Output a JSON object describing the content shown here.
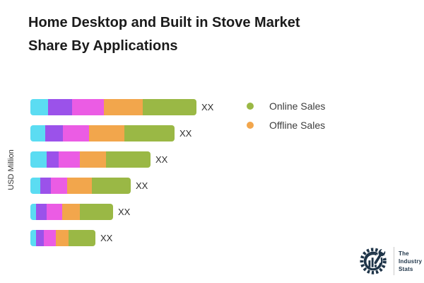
{
  "title": {
    "line1": "Home Desktop and Built in Stove Market",
    "line2": "Share By Applications"
  },
  "axis": {
    "y_label": "USD Million"
  },
  "legend": {
    "items": [
      {
        "label": "Online Sales",
        "color": "#9ab845"
      },
      {
        "label": "Offline Sales",
        "color": "#f2a64c"
      }
    ]
  },
  "logo": {
    "line1": "The",
    "line2": "Industry",
    "line3": "Stats",
    "color": "#1e3448"
  },
  "chart_data": {
    "type": "bar",
    "orientation": "horizontal",
    "stacked": true,
    "title": "Home Desktop and Built in Stove Market Share By Applications",
    "ylabel": "USD Million",
    "xlabel": "",
    "grid": false,
    "legend_position": "right",
    "category_labels_shown": false,
    "value_unit": "relative-width-px (chart shows placeholder values)",
    "series": [
      {
        "name": "",
        "color": "#5bdcf2",
        "values": [
          25,
          21,
          23,
          14,
          8,
          8
        ]
      },
      {
        "name": "",
        "color": "#9b52ea",
        "values": [
          34,
          25,
          17,
          15,
          15,
          11
        ]
      },
      {
        "name": "",
        "color": "#eb5ce4",
        "values": [
          45,
          37,
          30,
          23,
          22,
          17
        ]
      },
      {
        "name": "Offline Sales",
        "color": "#f2a64c",
        "values": [
          55,
          50,
          37,
          35,
          25,
          18
        ]
      },
      {
        "name": "Online Sales",
        "color": "#9ab845",
        "values": [
          76,
          71,
          63,
          55,
          47,
          38
        ]
      }
    ],
    "value_labels": [
      "XX",
      "XX",
      "XX",
      "XX",
      "XX",
      "XX"
    ]
  }
}
